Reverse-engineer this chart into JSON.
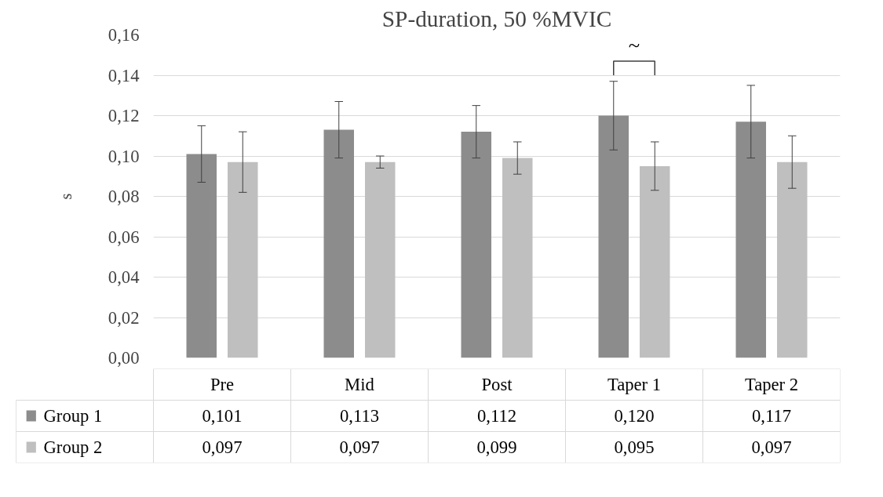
{
  "chart_data": {
    "type": "bar",
    "title": "SP-duration, 50 %MVIC",
    "ylabel": "s",
    "categories": [
      "Pre",
      "Mid",
      "Post",
      "Taper 1",
      "Taper 2"
    ],
    "series": [
      {
        "name": "Group 1",
        "color": "#8c8c8c",
        "values": [
          0.101,
          0.113,
          0.112,
          0.12,
          0.117
        ],
        "errors": [
          0.014,
          0.014,
          0.013,
          0.017,
          0.018
        ],
        "value_labels": [
          "0,101",
          "0,113",
          "0,112",
          "0,120",
          "0,117"
        ]
      },
      {
        "name": "Group 2",
        "color": "#bfbfbf",
        "values": [
          0.097,
          0.097,
          0.099,
          0.095,
          0.097
        ],
        "errors": [
          0.015,
          0.003,
          0.008,
          0.012,
          0.013
        ],
        "value_labels": [
          "0,097",
          "0,097",
          "0,099",
          "0,095",
          "0,097"
        ]
      }
    ],
    "ylim": [
      0,
      0.16
    ],
    "yticks": [
      {
        "value": 0,
        "label": "0,00"
      },
      {
        "value": 0.02,
        "label": "0,02"
      },
      {
        "value": 0.04,
        "label": "0,04"
      },
      {
        "value": 0.06,
        "label": "0,06"
      },
      {
        "value": 0.08,
        "label": "0,08"
      },
      {
        "value": 0.1,
        "label": "0,10"
      },
      {
        "value": 0.12,
        "label": "0,12"
      },
      {
        "value": 0.14,
        "label": "0,14"
      },
      {
        "value": 0.16,
        "label": "0,16"
      }
    ],
    "grid": "y",
    "legend": "bottom",
    "annotations": [
      "~"
    ]
  }
}
